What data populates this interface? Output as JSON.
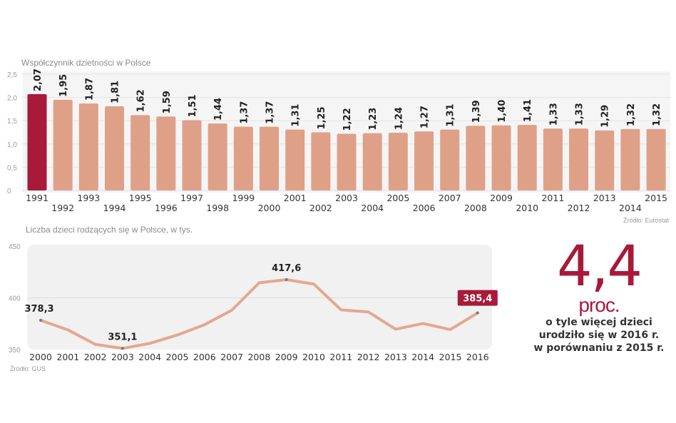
{
  "chart_data": [
    {
      "type": "bar",
      "title": "Współczynnik dzietności w Polsce",
      "categories": [
        "1991",
        "1992",
        "1993",
        "1994",
        "1995",
        "1996",
        "1997",
        "1998",
        "1999",
        "2000",
        "2001",
        "2002",
        "2003",
        "2004",
        "2005",
        "2006",
        "2007",
        "2008",
        "2009",
        "2010",
        "2011",
        "2012",
        "2013",
        "2014",
        "2015"
      ],
      "values": [
        2.07,
        1.95,
        1.87,
        1.81,
        1.62,
        1.59,
        1.51,
        1.44,
        1.37,
        1.37,
        1.31,
        1.25,
        1.22,
        1.23,
        1.24,
        1.27,
        1.31,
        1.39,
        1.4,
        1.41,
        1.33,
        1.33,
        1.29,
        1.32,
        1.32
      ],
      "value_labels": [
        "2,07",
        "1,95",
        "1,87",
        "1,81",
        "1,62",
        "1,59",
        "1,51",
        "1,44",
        "1,37",
        "1,37",
        "1,31",
        "1,25",
        "1,22",
        "1,23",
        "1,24",
        "1,27",
        "1,31",
        "1,39",
        "1,40",
        "1,41",
        "1,33",
        "1,33",
        "1,29",
        "1,32",
        "1,32"
      ],
      "yticks": [
        "0",
        "0,5",
        "1,0",
        "1,5",
        "2,0",
        "2,5"
      ],
      "ylim": [
        0,
        2.5
      ],
      "grid": true,
      "highlight_category": "1991",
      "colors": {
        "bar": "#dfa088",
        "highlight": "#a8193a"
      },
      "source": "Źródło: Eurostat"
    },
    {
      "type": "line",
      "title": "Liczba dzieci rodzących się w Polsce, w tys.",
      "x": [
        "2000",
        "2001",
        "2002",
        "2003",
        "2004",
        "2005",
        "2006",
        "2007",
        "2008",
        "2009",
        "2010",
        "2011",
        "2012",
        "2013",
        "2014",
        "2015",
        "2016"
      ],
      "y": [
        378.3,
        369,
        355,
        351.1,
        356,
        364,
        374,
        388,
        414.5,
        417.6,
        413.3,
        388.4,
        386.3,
        369.6,
        375.2,
        369.3,
        385.4
      ],
      "point_labels": {
        "2000": "378,3",
        "2003": "351,1",
        "2009": "417,6",
        "2016": "385,4"
      },
      "yticks": [
        "350",
        "400",
        "450"
      ],
      "ylim": [
        350,
        450
      ],
      "grid": true,
      "colors": {
        "line": "#e3a890",
        "highlight_label_bg": "#a8193a"
      },
      "source": "Źródło: GUS"
    }
  ],
  "callout": {
    "value": "4,4",
    "unit": "proc.",
    "lines": [
      "o tyle więcej dzieci",
      "urodziło się w 2016 r.",
      "w porównaniu z 2015 r."
    ]
  }
}
